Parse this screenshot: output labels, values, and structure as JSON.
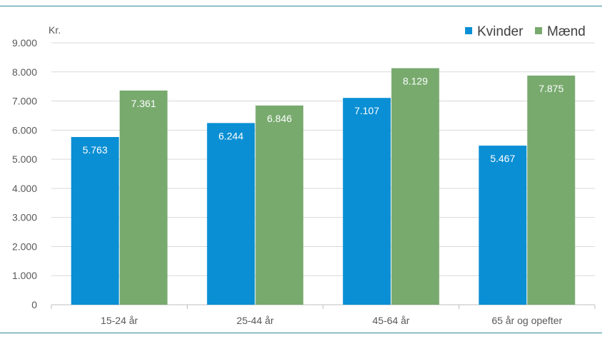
{
  "colors": {
    "frame": "#2e8b9a",
    "grid": "#d9d9d9",
    "axis": "#bfbfbf",
    "kvinder": "#0a8fd4",
    "maend": "#78aa6e"
  },
  "chart_data": {
    "type": "bar",
    "unit_label": "Kr.",
    "categories": [
      "15-24 år",
      "25-44 år",
      "45-64 år",
      "65 år og opefter"
    ],
    "series": [
      {
        "name": "Kvinder",
        "values": [
          5763,
          6244,
          7107,
          5467
        ],
        "labels": [
          "5.763",
          "6.244",
          "7.107",
          "5.467"
        ]
      },
      {
        "name": "Mænd",
        "values": [
          7361,
          6846,
          8129,
          7875
        ],
        "labels": [
          "7.361",
          "6.846",
          "8.129",
          "7.875"
        ]
      }
    ],
    "ylim": [
      0,
      9000
    ],
    "yticks": [
      0,
      1000,
      2000,
      3000,
      4000,
      5000,
      6000,
      7000,
      8000,
      9000
    ],
    "ytick_labels": [
      "0",
      "1.000",
      "2.000",
      "3.000",
      "4.000",
      "5.000",
      "6.000",
      "7.000",
      "8.000",
      "9.000"
    ],
    "grid": true,
    "legend_position": "top-right"
  }
}
